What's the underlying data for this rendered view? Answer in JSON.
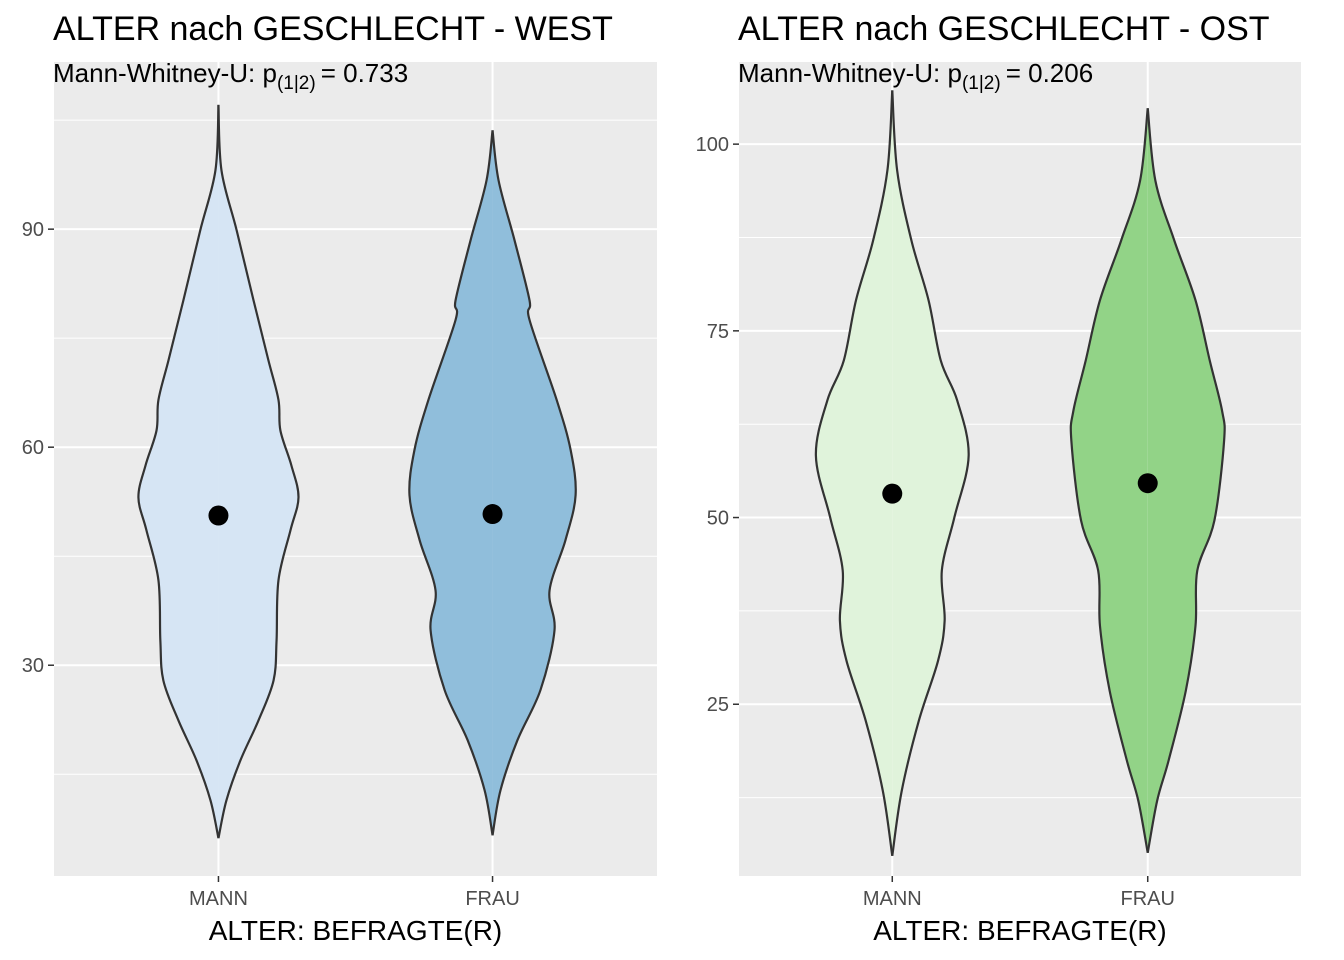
{
  "chart_data": [
    {
      "type": "violin",
      "title": "ALTER nach GESCHLECHT - WEST",
      "subtitle": {
        "text": "Mann-Whitney-U:  p",
        "subscript": "(1|2)",
        "rest": "= 0.733"
      },
      "x_label": "ALTER: BEFRAGTE(R)",
      "categories": [
        "MANN",
        "FRAU"
      ],
      "ylim": [
        1,
        113
      ],
      "yticks": [
        30,
        60,
        90
      ],
      "grid": true,
      "minor_grid": true,
      "groups": [
        {
          "color": "#d6e5f4",
          "mean": 50.6,
          "density_y": [
            107.1,
            98.1,
            89.9,
            80.2,
            72.0,
            66.5,
            62.3,
            57.5,
            53.1,
            48.6,
            41.7,
            33.4,
            27.9,
            22.4,
            16.9,
            11.4,
            6.2
          ],
          "density_width": [
            0,
            0.011,
            0.066,
            0.128,
            0.182,
            0.219,
            0.226,
            0.266,
            0.292,
            0.263,
            0.219,
            0.212,
            0.201,
            0.146,
            0.08,
            0.029,
            0
          ]
        },
        {
          "color": "#90bedb",
          "mean": 50.8,
          "density_y": [
            103.6,
            96.7,
            88.5,
            80.2,
            77.5,
            66.5,
            59.6,
            53.4,
            47.2,
            40.3,
            34.8,
            26.6,
            19.7,
            12.8,
            6.6
          ],
          "density_width": [
            0,
            0.022,
            0.08,
            0.135,
            0.135,
            0.234,
            0.285,
            0.303,
            0.266,
            0.208,
            0.226,
            0.175,
            0.091,
            0.029,
            0
          ]
        }
      ]
    },
    {
      "type": "violin",
      "title": "ALTER nach GESCHLECHT - OST",
      "subtitle": {
        "text": "Mann-Whitney-U:  p",
        "subscript": "(1|2)",
        "rest": "= 0.206"
      },
      "x_label": "ALTER: BEFRAGTE(R)",
      "categories": [
        "MANN",
        "FRAU"
      ],
      "ylim": [
        2,
        111
      ],
      "yticks": [
        25,
        50,
        75,
        100
      ],
      "grid": true,
      "minor_grid": true,
      "groups": [
        {
          "color": "#e0f3db",
          "mean": 53.2,
          "density_y": [
            107.2,
            96.5,
            87.1,
            79.1,
            71.0,
            65.7,
            58.3,
            50.0,
            42.9,
            36.2,
            30.8,
            22.8,
            13.4,
            4.7
          ],
          "density_width": [
            0,
            0.019,
            0.075,
            0.142,
            0.19,
            0.254,
            0.299,
            0.243,
            0.194,
            0.205,
            0.179,
            0.104,
            0.037,
            0
          ]
        },
        {
          "color": "#92d387",
          "mean": 54.6,
          "density_y": [
            104.8,
            95.1,
            87.1,
            79.1,
            71.0,
            64.3,
            60.3,
            49.6,
            42.9,
            35.5,
            26.8,
            17.5,
            12.1,
            5.1
          ],
          "density_width": [
            0,
            0.03,
            0.104,
            0.187,
            0.243,
            0.291,
            0.299,
            0.261,
            0.194,
            0.187,
            0.149,
            0.082,
            0.037,
            0
          ]
        }
      ]
    }
  ]
}
